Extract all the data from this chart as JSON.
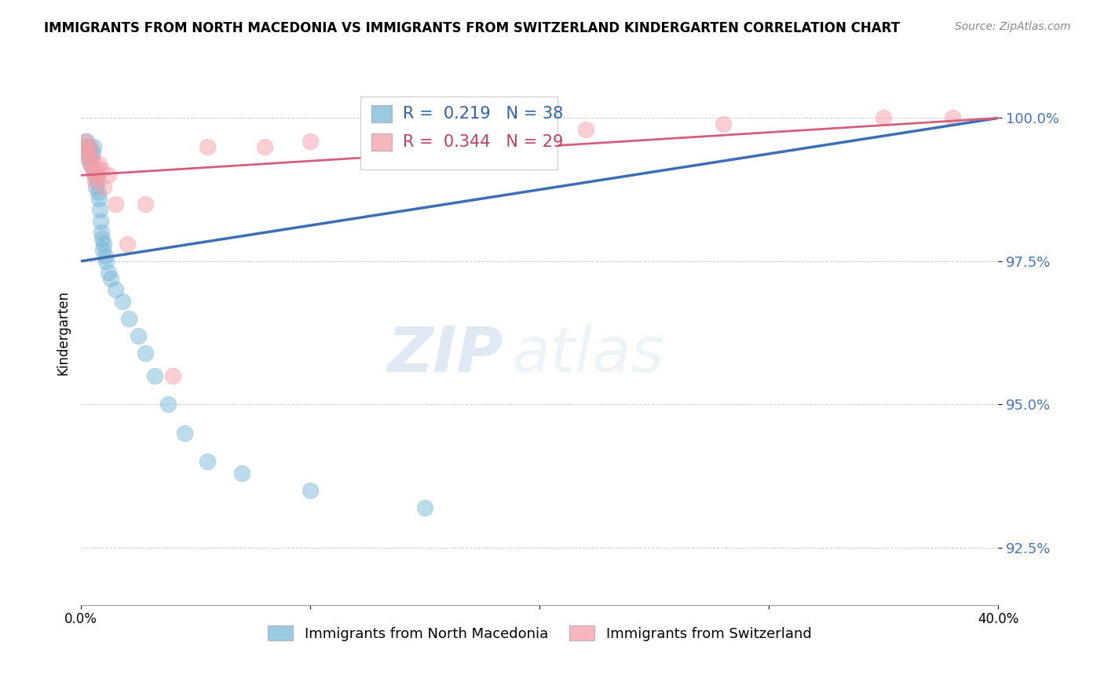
{
  "title": "IMMIGRANTS FROM NORTH MACEDONIA VS IMMIGRANTS FROM SWITZERLAND KINDERGARTEN CORRELATION CHART",
  "source_text": "Source: ZipAtlas.com",
  "ylabel": "Kindergarten",
  "x_ticks": [
    0.0,
    10.0,
    20.0,
    30.0,
    40.0
  ],
  "y_ticks": [
    92.5,
    95.0,
    97.5,
    100.0
  ],
  "xlim": [
    0.0,
    40.0
  ],
  "ylim": [
    91.5,
    101.0
  ],
  "legend_r_blue": "R =  0.219",
  "legend_n_blue": "N = 38",
  "legend_r_pink": "R =  0.344",
  "legend_n_pink": "N = 29",
  "blue_color": "#7ab8d9",
  "pink_color": "#f4a0a8",
  "blue_line_color": "#3b6faf",
  "pink_line_color": "#d45f7a",
  "watermark_zip": "ZIP",
  "watermark_atlas": "atlas",
  "blue_x": [
    0.18,
    0.22,
    0.28,
    0.32,
    0.38,
    0.42,
    0.48,
    0.52,
    0.55,
    0.58,
    0.62,
    0.65,
    0.68,
    0.72,
    0.75,
    0.78,
    0.82,
    0.85,
    0.88,
    0.92,
    0.95,
    1.0,
    1.05,
    1.1,
    1.2,
    1.3,
    1.5,
    1.8,
    2.1,
    2.5,
    2.8,
    3.2,
    3.8,
    4.5,
    5.5,
    7.0,
    10.0,
    15.0
  ],
  "blue_y": [
    99.5,
    99.6,
    99.4,
    99.3,
    99.5,
    99.2,
    99.3,
    99.4,
    99.5,
    99.1,
    99.0,
    98.8,
    99.0,
    98.9,
    98.7,
    98.6,
    98.4,
    98.2,
    98.0,
    97.9,
    97.7,
    97.8,
    97.6,
    97.5,
    97.3,
    97.2,
    97.0,
    96.8,
    96.5,
    96.2,
    95.9,
    95.5,
    95.0,
    94.5,
    94.0,
    93.8,
    93.5,
    93.2
  ],
  "pink_x": [
    0.15,
    0.2,
    0.25,
    0.3,
    0.38,
    0.42,
    0.48,
    0.52,
    0.58,
    0.62,
    0.68,
    0.72,
    0.78,
    0.88,
    1.0,
    1.2,
    1.5,
    2.0,
    2.8,
    4.0,
    5.5,
    8.0,
    10.0,
    14.0,
    18.0,
    22.0,
    28.0,
    35.0,
    38.0
  ],
  "pink_y": [
    99.5,
    99.6,
    99.4,
    99.3,
    99.5,
    99.2,
    99.3,
    99.1,
    99.0,
    98.9,
    99.0,
    99.1,
    99.2,
    99.1,
    98.8,
    99.0,
    98.5,
    97.8,
    98.5,
    95.5,
    99.5,
    99.5,
    99.6,
    99.7,
    99.8,
    99.8,
    99.9,
    100.0,
    100.0
  ],
  "blue_trendline_x": [
    0.0,
    40.0
  ],
  "blue_trendline_y": [
    97.5,
    100.0
  ],
  "pink_trendline_x": [
    0.0,
    40.0
  ],
  "pink_trendline_y": [
    99.0,
    100.0
  ]
}
